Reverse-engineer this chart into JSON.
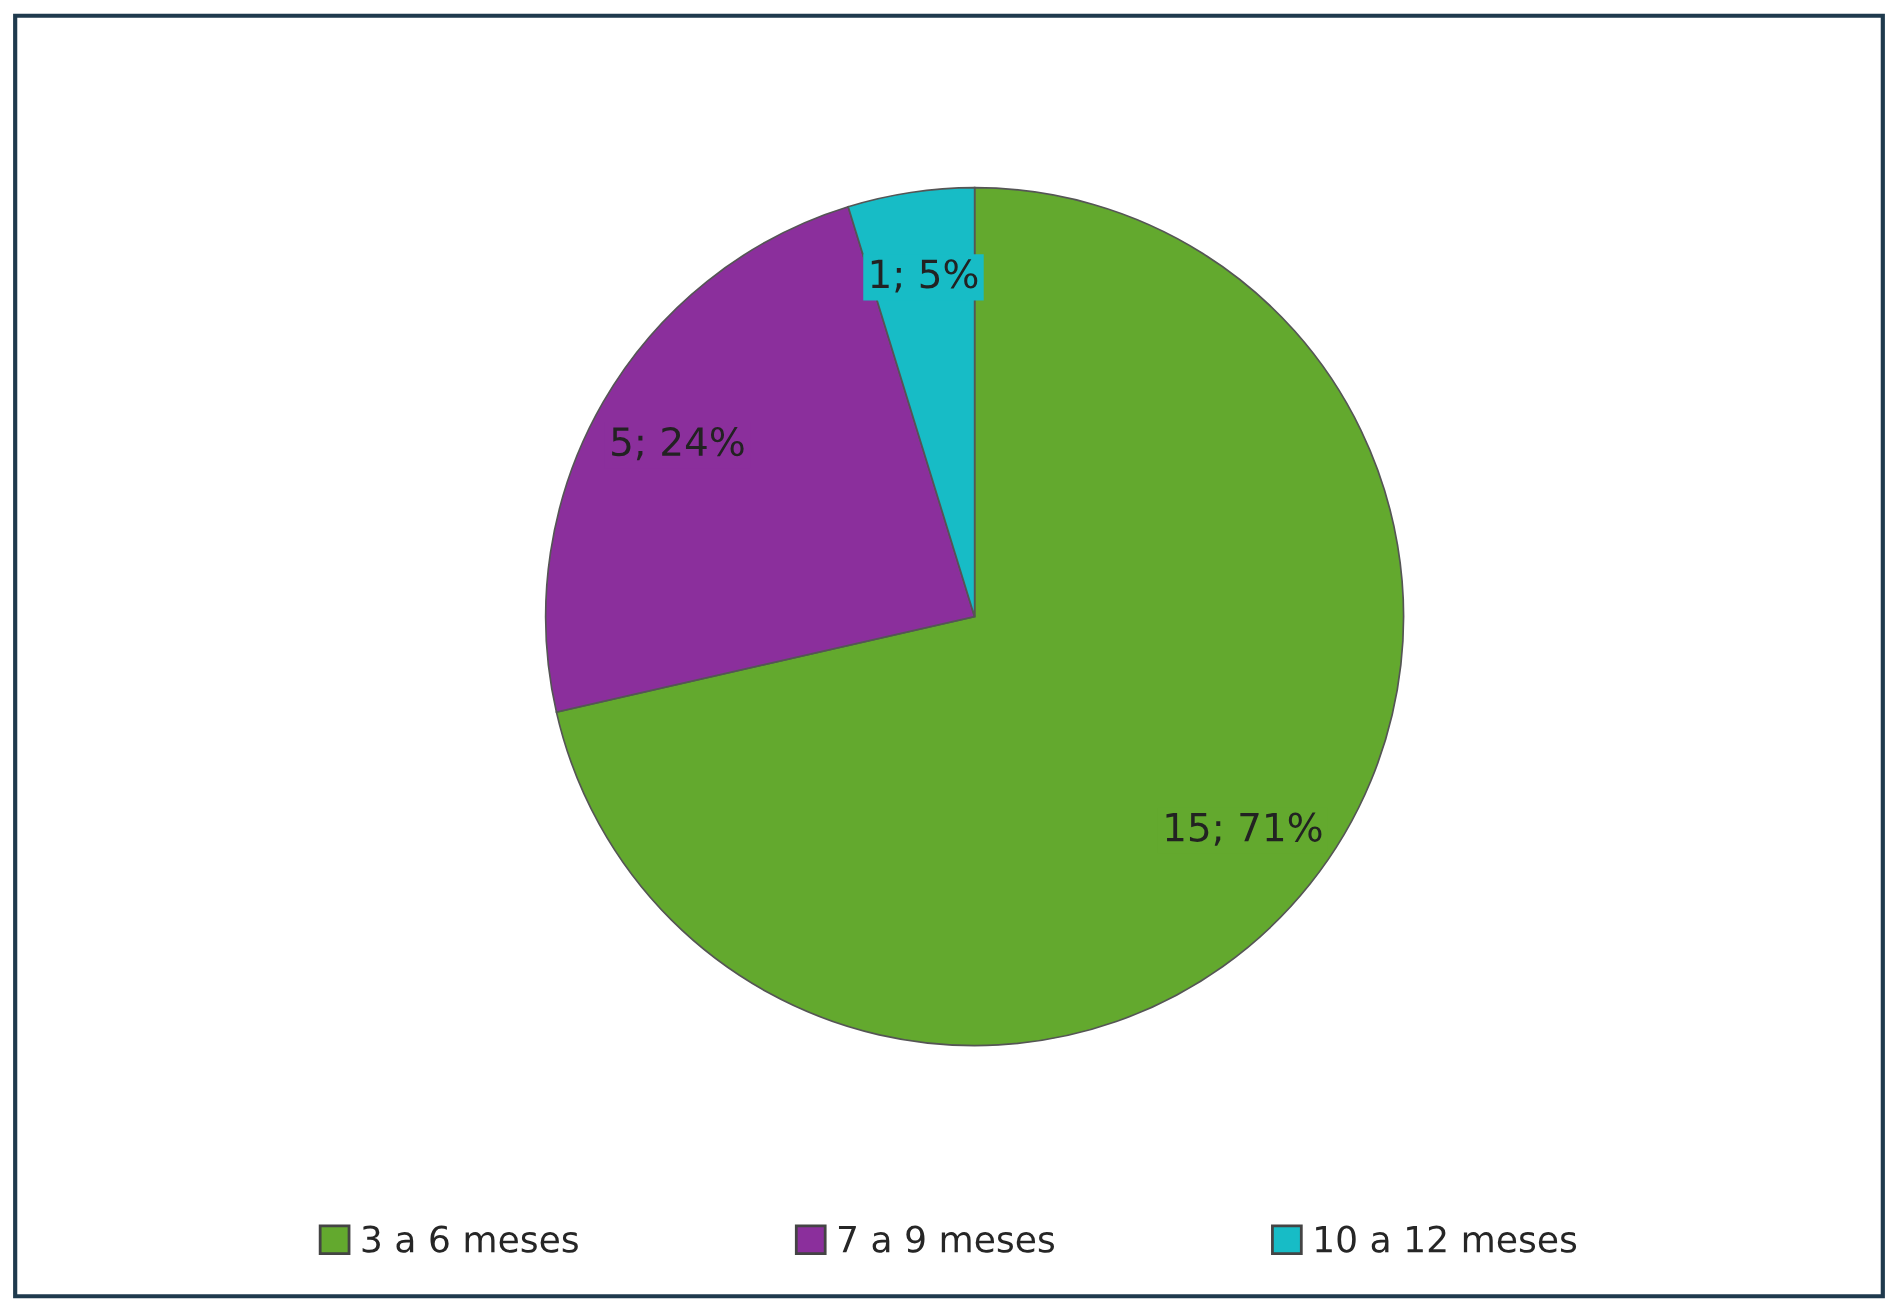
{
  "chart_data": {
    "type": "pie",
    "categories": [
      "3 a 6 meses",
      "7 a 9 meses",
      "10 a 12 meses"
    ],
    "values": [
      15,
      5,
      1
    ],
    "colors": [
      "#63a92e",
      "#8b2f9c",
      "#17bcc6"
    ],
    "value_labels": [
      "15; 71%",
      "5; 24%",
      "1; 5%"
    ],
    "legend": "bottom"
  }
}
